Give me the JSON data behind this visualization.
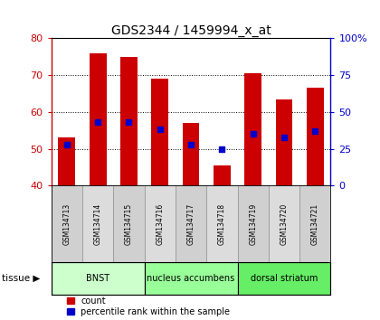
{
  "title": "GDS2344 / 1459994_x_at",
  "samples": [
    "GSM134713",
    "GSM134714",
    "GSM134715",
    "GSM134716",
    "GSM134717",
    "GSM134718",
    "GSM134719",
    "GSM134720",
    "GSM134721"
  ],
  "counts": [
    53,
    76,
    75,
    69,
    57,
    45.5,
    70.5,
    63.5,
    66.5
  ],
  "percentile_ranks_pct": [
    28,
    43,
    43,
    38,
    28,
    25,
    35,
    33,
    37
  ],
  "ylim": [
    40,
    80
  ],
  "yticks": [
    40,
    50,
    60,
    70,
    80
  ],
  "right_yticks": [
    0,
    25,
    50,
    75,
    100
  ],
  "right_ylim": [
    0,
    100
  ],
  "bar_color": "#cc0000",
  "dot_color": "#0000cc",
  "bar_width": 0.55,
  "tissue_groups": [
    {
      "label": "BNST",
      "start": 0,
      "end": 2,
      "color": "#ccffcc"
    },
    {
      "label": "nucleus accumbens",
      "start": 3,
      "end": 5,
      "color": "#99ff99"
    },
    {
      "label": "dorsal striatum",
      "start": 6,
      "end": 8,
      "color": "#66ee66"
    }
  ],
  "tissue_label": "tissue",
  "legend_count_label": "count",
  "legend_pct_label": "percentile rank within the sample",
  "background_color": "#ffffff",
  "left_axis_color": "#cc0000",
  "right_axis_color": "#0000cc"
}
